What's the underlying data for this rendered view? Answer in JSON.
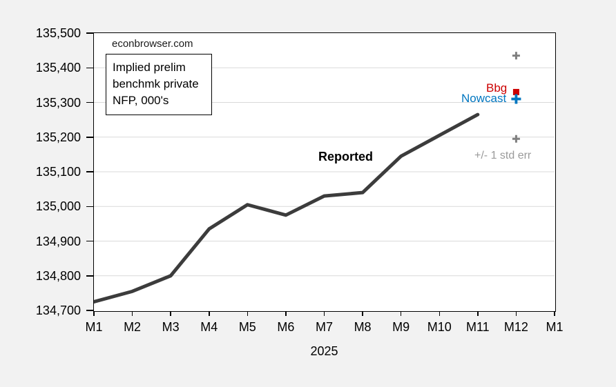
{
  "watermark": "econbrowser.com",
  "info_box": {
    "lines": [
      "Implied prelim",
      "benchmk private",
      "NFP, 000's"
    ]
  },
  "chart_data": {
    "type": "line",
    "title": "Implied prelim benchmk private NFP, 000's",
    "watermark": "econbrowser.com",
    "xlabel": "2025",
    "grid": true,
    "categories": [
      "M1",
      "M2",
      "M3",
      "M4",
      "M5",
      "M6",
      "M7",
      "M8",
      "M9",
      "M10",
      "M11",
      "M12",
      "M1"
    ],
    "y_axis": {
      "min": 134700,
      "max": 135500,
      "step": 100,
      "tick_labels": [
        "134,700",
        "134,800",
        "134,900",
        "135,000",
        "135,100",
        "135,200",
        "135,300",
        "135,400",
        "135,500"
      ]
    },
    "colors": {
      "reported_line": "#3c3c3c",
      "bbg": "#cc0000",
      "nowcast": "#0076c0",
      "stderr_marker": "#7f7f7f",
      "stderr_text": "#9a9a9a",
      "gridline": "#d9d9d9"
    },
    "series": [
      {
        "name": "Reported",
        "type": "line",
        "marker": "none",
        "color": "#3c3c3c",
        "x_categories": [
          "M1",
          "M2",
          "M3",
          "M4",
          "M5",
          "M6",
          "M7",
          "M8",
          "M9",
          "M10",
          "M11"
        ],
        "values": [
          134725,
          134755,
          134800,
          134935,
          135005,
          134975,
          135030,
          135040,
          135145,
          135205,
          135265
        ]
      },
      {
        "name": "Bbg",
        "type": "scatter",
        "marker": "square",
        "color": "#cc0000",
        "points": [
          {
            "x": "M12",
            "value": 135330
          }
        ]
      },
      {
        "name": "Nowcast",
        "type": "scatter",
        "marker": "cross",
        "color": "#0076c0",
        "points": [
          {
            "x": "M12",
            "value": 135310
          }
        ]
      },
      {
        "name": "+/- 1 std err",
        "type": "scatter",
        "marker": "plus",
        "color": "#7f7f7f",
        "points": [
          {
            "x": "M12",
            "value": 135435
          },
          {
            "x": "M12",
            "value": 135195
          }
        ]
      }
    ]
  }
}
